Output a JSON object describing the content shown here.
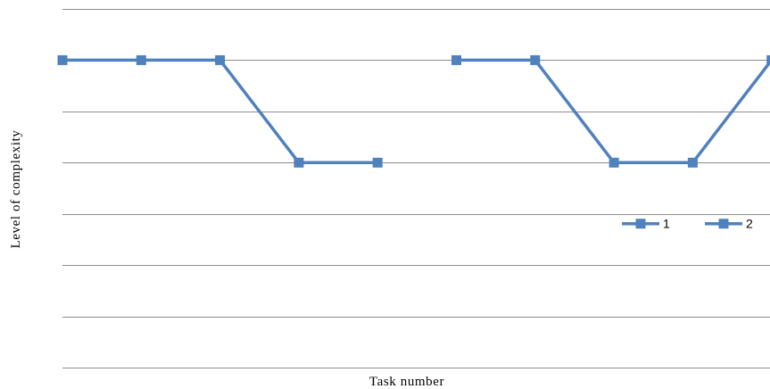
{
  "chart_data": {
    "type": "line",
    "xlabel": "Task number",
    "ylabel": "Level of complexity",
    "ylim": [
      0,
      7
    ],
    "grid": true,
    "legend_position": "right",
    "series_color": "#4f81bd",
    "grid_color": "#8c8c8c",
    "series": [
      {
        "name": "1",
        "x": [
          1,
          2,
          3,
          4,
          5
        ],
        "values": [
          6,
          6,
          6,
          4,
          4
        ]
      },
      {
        "name": "2",
        "x": [
          6,
          7,
          8,
          9,
          10
        ],
        "values": [
          6,
          6,
          4,
          4,
          6
        ]
      }
    ]
  }
}
